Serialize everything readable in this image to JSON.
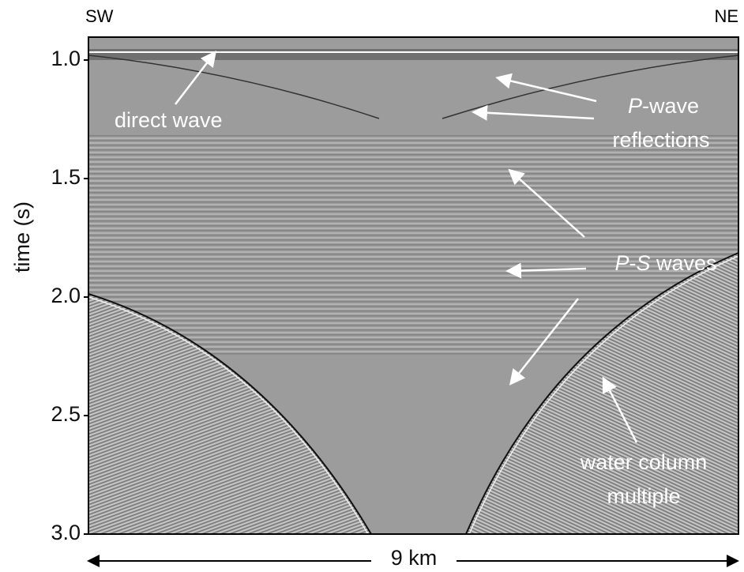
{
  "figure": {
    "left_label": "SW",
    "right_label": "NE",
    "y_axis": {
      "label": "time  (s)",
      "lim": [
        0.9,
        3.0
      ],
      "ticks": [
        {
          "value": 1.0,
          "label": "1.0"
        },
        1.5,
        {
          "value": 2.0,
          "label": "2.0"
        },
        2.5,
        {
          "value": 3.0,
          "label": "3.0"
        }
      ]
    },
    "scale_label": "9 km",
    "annotations": {
      "direct_wave": "direct wave",
      "p_wave": {
        "italic": "P",
        "rest": "-wave",
        "line2": "reflections"
      },
      "ps_waves": {
        "italic1": "P",
        "dash": "-",
        "italic2": "S",
        "rest": " waves"
      },
      "water_column": {
        "line1": "water column",
        "line2": "multiple"
      }
    }
  }
}
